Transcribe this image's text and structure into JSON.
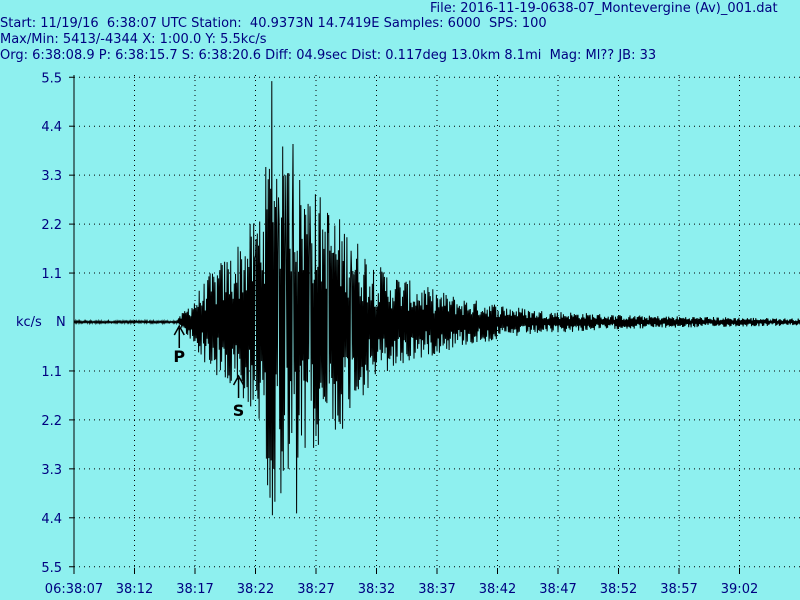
{
  "header": {
    "file_line": "File: 2016-11-19-0638-07_Montevergine (Av)_001.dat",
    "start_line": "Start: 11/19/16  6:38:07 UTC Station:  40.9373N 14.7419E Samples: 6000  SPS: 100",
    "maxmin_line": "Max/Min: 5413/-4344 X: 1:00.0 Y: 5.5kc/s",
    "org_line": "Org: 6:38:08.9 P: 6:38:15.7 S: 6:38:20.6 Diff: 04.9sec Dist: 0.117deg 13.0km 8.1mi  Mag: Ml?? JB: 33"
  },
  "colors": {
    "background": "#8ef0ef",
    "header_text": "#000080",
    "trace": "#000000",
    "grid": "#000000"
  },
  "chart_data": {
    "type": "line",
    "title": "",
    "ylabel": "kc/s",
    "center_label": "N",
    "y_ticks": [
      "5.5",
      "4.4",
      "3.3",
      "2.2",
      "1.1",
      "1.1",
      "2.2",
      "3.3",
      "4.4",
      "5.5"
    ],
    "y_tick_values": [
      5.5,
      4.4,
      3.3,
      2.2,
      1.1,
      -1.1,
      -2.2,
      -3.3,
      -4.4,
      -5.5
    ],
    "ylim": [
      -5.5,
      5.5
    ],
    "x_ticks": [
      "06:38:07",
      "38:12",
      "38:17",
      "38:22",
      "38:27",
      "38:32",
      "38:37",
      "38:42",
      "38:47",
      "38:52",
      "38:57",
      "39:02"
    ],
    "x_tick_seconds": [
      0,
      5,
      10,
      15,
      20,
      25,
      30,
      35,
      40,
      45,
      50,
      55
    ],
    "xlim_seconds": [
      0,
      60
    ],
    "grid": true,
    "grid_style": "dotted",
    "max_kcs": 5.413,
    "min_kcs": -4.344,
    "sps": 100,
    "samples": 6000,
    "markers": [
      {
        "label": "P",
        "time_seconds": 8.7
      },
      {
        "label": "S",
        "time_seconds": 13.6
      }
    ],
    "series": [
      {
        "envelope": [
          {
            "t": 0,
            "a": 0.03
          },
          {
            "t": 8.5,
            "a": 0.03
          },
          {
            "t": 8.8,
            "a": 0.15
          },
          {
            "t": 10,
            "a": 0.6
          },
          {
            "t": 11.5,
            "a": 1.2
          },
          {
            "t": 13,
            "a": 1.6
          },
          {
            "t": 15,
            "a": 2.4
          },
          {
            "t": 16.5,
            "a": 4.4
          },
          {
            "t": 18,
            "a": 3.6
          },
          {
            "t": 20,
            "a": 3.0
          },
          {
            "t": 22.5,
            "a": 2.2
          },
          {
            "t": 25,
            "a": 1.3
          },
          {
            "t": 28,
            "a": 0.9
          },
          {
            "t": 32,
            "a": 0.55
          },
          {
            "t": 38,
            "a": 0.28
          },
          {
            "t": 45,
            "a": 0.16
          },
          {
            "t": 52,
            "a": 0.12
          },
          {
            "t": 60,
            "a": 0.08
          }
        ],
        "peaks": [
          {
            "t": 15.0,
            "v": 1.5
          },
          {
            "t": 15.6,
            "v": -1.3
          },
          {
            "t": 16.35,
            "v": 5.413
          },
          {
            "t": 16.4,
            "v": -4.344
          },
          {
            "t": 16.9,
            "v": 2.8
          },
          {
            "t": 17.5,
            "v": 3.3
          },
          {
            "t": 17.7,
            "v": -3.3
          },
          {
            "t": 18.1,
            "v": 4.0
          },
          {
            "t": 18.4,
            "v": -4.3
          },
          {
            "t": 19.5,
            "v": 2.6
          },
          {
            "t": 20.1,
            "v": -2.3
          },
          {
            "t": 21.0,
            "v": 2.0
          },
          {
            "t": 22.2,
            "v": -2.4
          },
          {
            "t": 22.9,
            "v": 1.6
          },
          {
            "t": 23.6,
            "v": -1.3
          }
        ]
      }
    ]
  }
}
